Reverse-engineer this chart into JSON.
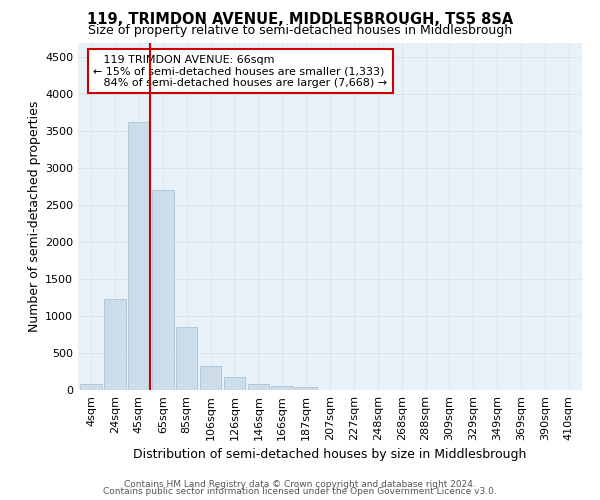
{
  "title": "119, TRIMDON AVENUE, MIDDLESBROUGH, TS5 8SA",
  "subtitle": "Size of property relative to semi-detached houses in Middlesbrough",
  "xlabel": "Distribution of semi-detached houses by size in Middlesbrough",
  "ylabel": "Number of semi-detached properties",
  "footer_line1": "Contains HM Land Registry data © Crown copyright and database right 2024.",
  "footer_line2": "Contains public sector information licensed under the Open Government Licence v3.0.",
  "bar_labels": [
    "4sqm",
    "24sqm",
    "45sqm",
    "65sqm",
    "85sqm",
    "106sqm",
    "126sqm",
    "146sqm",
    "166sqm",
    "187sqm",
    "207sqm",
    "227sqm",
    "248sqm",
    "268sqm",
    "288sqm",
    "309sqm",
    "329sqm",
    "349sqm",
    "369sqm",
    "390sqm",
    "410sqm"
  ],
  "bar_values": [
    80,
    1230,
    3620,
    2700,
    850,
    330,
    170,
    80,
    60,
    35,
    5,
    0,
    0,
    0,
    0,
    0,
    0,
    0,
    0,
    0,
    0
  ],
  "bar_color": "#ccdce8",
  "bar_edgecolor": "#aac4d8",
  "property_line_bar_index": 2,
  "property_label": "119 TRIMDON AVENUE: 66sqm",
  "smaller_pct": "15%",
  "smaller_count": "1,333",
  "larger_pct": "84%",
  "larger_count": "7,668",
  "annotation_box_color": "#cc0000",
  "vline_color": "#cc0000",
  "ylim": [
    0,
    4700
  ],
  "yticks": [
    0,
    500,
    1000,
    1500,
    2000,
    2500,
    3000,
    3500,
    4000,
    4500
  ],
  "grid_color": "#d8e4ee",
  "bg_color": "#e8f0f8",
  "title_fontsize": 10.5,
  "subtitle_fontsize": 9,
  "axis_label_fontsize": 9,
  "tick_fontsize": 8,
  "footer_fontsize": 6.5
}
